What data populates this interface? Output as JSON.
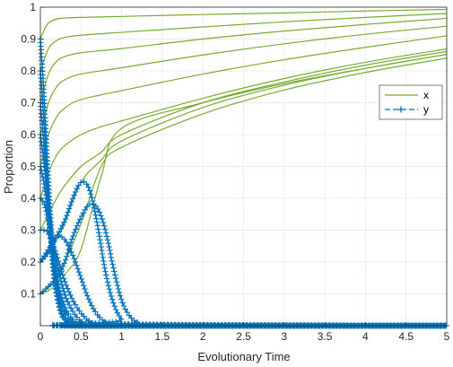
{
  "chart_data": {
    "type": "line",
    "title": "",
    "xlabel": "Evolutionary Time",
    "ylabel": "Proportion",
    "xlim": [
      0,
      5
    ],
    "ylim": [
      0,
      1
    ],
    "xticks": [
      0,
      0.5,
      1,
      1.5,
      2,
      2.5,
      3,
      3.5,
      4,
      4.5,
      5
    ],
    "xtick_labels": [
      "0",
      "0.5",
      "1",
      "1.5",
      "2",
      "2.5",
      "3",
      "3.5",
      "4",
      "4.5",
      "5"
    ],
    "yticks": [
      0.1,
      0.2,
      0.3,
      0.4,
      0.5,
      0.6,
      0.7,
      0.8,
      0.9,
      1
    ],
    "ytick_labels": [
      "0.1",
      "0.2",
      "0.3",
      "0.4",
      "0.5",
      "0.6",
      "0.7",
      "0.8",
      "0.9",
      "1"
    ],
    "grid": true,
    "legend_position": "right",
    "colors": {
      "x": "#77AC30",
      "y": "#0072BD"
    },
    "series": [
      {
        "name": "x",
        "style": "solid",
        "trajectories": [
          {
            "x": [
              0,
              0.05,
              0.1,
              0.2,
              0.3,
              0.5,
              1,
              2,
              3,
              4,
              5
            ],
            "y": [
              0.9,
              0.93,
              0.95,
              0.963,
              0.966,
              0.968,
              0.971,
              0.977,
              0.982,
              0.988,
              0.993
            ]
          },
          {
            "x": [
              0,
              0.1,
              0.2,
              0.3,
              0.5,
              1,
              2,
              3,
              4,
              5
            ],
            "y": [
              0.8,
              0.87,
              0.895,
              0.905,
              0.912,
              0.921,
              0.938,
              0.954,
              0.968,
              0.98
            ]
          },
          {
            "x": [
              0,
              0.1,
              0.2,
              0.3,
              0.5,
              1,
              2,
              3,
              4,
              5
            ],
            "y": [
              0.7,
              0.79,
              0.83,
              0.845,
              0.857,
              0.87,
              0.9,
              0.925,
              0.946,
              0.965
            ]
          },
          {
            "x": [
              0,
              0.1,
              0.2,
              0.3,
              0.5,
              1,
              2,
              3,
              4,
              5
            ],
            "y": [
              0.6,
              0.7,
              0.75,
              0.772,
              0.79,
              0.81,
              0.85,
              0.885,
              0.915,
              0.94
            ]
          },
          {
            "x": [
              0,
              0.1,
              0.2,
              0.3,
              0.5,
              1,
              2,
              3,
              4,
              5
            ],
            "y": [
              0.5,
              0.6,
              0.655,
              0.683,
              0.71,
              0.738,
              0.79,
              0.835,
              0.874,
              0.91
            ]
          },
          {
            "x": [
              0,
              0.1,
              0.2,
              0.3,
              0.5,
              0.75,
              1,
              2,
              3,
              4,
              5
            ],
            "y": [
              0.4,
              0.48,
              0.535,
              0.565,
              0.6,
              0.625,
              0.643,
              0.714,
              0.776,
              0.827,
              0.869
            ]
          },
          {
            "x": [
              0,
              0.1,
              0.2,
              0.3,
              0.5,
              0.75,
              1,
              2,
              3,
              4,
              5
            ],
            "y": [
              0.3,
              0.35,
              0.4,
              0.44,
              0.5,
              0.545,
              0.6,
              0.7,
              0.765,
              0.818,
              0.861
            ]
          },
          {
            "x": [
              0,
              0.1,
              0.2,
              0.3,
              0.5,
              0.75,
              1,
              2,
              3,
              4,
              5
            ],
            "y": [
              0.2,
              0.23,
              0.27,
              0.32,
              0.45,
              0.52,
              0.58,
              0.685,
              0.755,
              0.808,
              0.852
            ]
          },
          {
            "x": [
              0,
              0.1,
              0.2,
              0.3,
              0.5,
              0.75,
              1,
              2,
              3,
              4,
              5
            ],
            "y": [
              0.1,
              0.12,
              0.15,
              0.2,
              0.32,
              0.5,
              0.56,
              0.665,
              0.74,
              0.795,
              0.84
            ]
          },
          {
            "x": [
              0,
              0.1,
              0.2,
              0.3,
              0.5,
              0.75,
              1,
              2,
              3,
              4,
              5
            ],
            "y": [
              0.1,
              0.11,
              0.13,
              0.16,
              0.24,
              0.47,
              0.62,
              0.7,
              0.76,
              0.808,
              0.852
            ]
          }
        ]
      },
      {
        "name": "y",
        "style": "dashed-plus",
        "trajectories": [
          {
            "x": [
              0,
              0.05,
              0.1,
              0.15,
              0.2,
              0.25,
              0.3,
              0.4,
              0.5,
              5
            ],
            "y": [
              0.9,
              0.7,
              0.45,
              0.25,
              0.12,
              0.05,
              0.02,
              0.005,
              0,
              0
            ]
          },
          {
            "x": [
              0,
              0.05,
              0.1,
              0.15,
              0.2,
              0.25,
              0.3,
              0.4,
              0.5,
              5
            ],
            "y": [
              0.8,
              0.62,
              0.4,
              0.22,
              0.1,
              0.045,
              0.02,
              0.005,
              0,
              0
            ]
          },
          {
            "x": [
              0,
              0.05,
              0.1,
              0.15,
              0.2,
              0.25,
              0.3,
              0.4,
              0.5,
              5
            ],
            "y": [
              0.7,
              0.55,
              0.37,
              0.2,
              0.1,
              0.045,
              0.02,
              0.005,
              0,
              0
            ]
          },
          {
            "x": [
              0,
              0.05,
              0.1,
              0.15,
              0.2,
              0.3,
              0.4,
              0.5,
              0.6,
              5
            ],
            "y": [
              0.6,
              0.5,
              0.36,
              0.22,
              0.12,
              0.04,
              0.012,
              0.003,
              0,
              0
            ]
          },
          {
            "x": [
              0,
              0.05,
              0.1,
              0.15,
              0.2,
              0.3,
              0.4,
              0.5,
              0.6,
              5
            ],
            "y": [
              0.5,
              0.44,
              0.35,
              0.25,
              0.15,
              0.06,
              0.02,
              0.006,
              0,
              0
            ]
          },
          {
            "x": [
              0,
              0.05,
              0.1,
              0.15,
              0.2,
              0.3,
              0.4,
              0.5,
              0.6,
              0.7,
              5
            ],
            "y": [
              0.4,
              0.38,
              0.33,
              0.27,
              0.2,
              0.1,
              0.045,
              0.015,
              0.005,
              0,
              0
            ]
          },
          {
            "x": [
              0,
              0.05,
              0.1,
              0.2,
              0.3,
              0.4,
              0.5,
              0.6,
              0.7,
              0.8,
              5
            ],
            "y": [
              0.3,
              0.3,
              0.29,
              0.22,
              0.14,
              0.08,
              0.04,
              0.015,
              0.005,
              0,
              0
            ]
          },
          {
            "x": [
              0,
              0.1,
              0.2,
              0.3,
              0.4,
              0.5,
              0.6,
              0.7,
              0.8,
              0.9,
              5
            ],
            "y": [
              0.2,
              0.24,
              0.28,
              0.27,
              0.22,
              0.15,
              0.08,
              0.035,
              0.012,
              0.004,
              0
            ]
          },
          {
            "x": [
              0,
              0.1,
              0.2,
              0.3,
              0.4,
              0.5,
              0.6,
              0.7,
              0.8,
              0.9,
              1,
              1.1,
              5
            ],
            "y": [
              0.2,
              0.23,
              0.28,
              0.33,
              0.4,
              0.45,
              0.43,
              0.32,
              0.17,
              0.07,
              0.02,
              0.005,
              0
            ]
          },
          {
            "x": [
              0,
              0.2,
              0.3,
              0.4,
              0.5,
              0.6,
              0.7,
              0.8,
              0.9,
              1,
              1.1,
              1.2,
              1.3,
              5
            ],
            "y": [
              0.1,
              0.15,
              0.2,
              0.28,
              0.34,
              0.38,
              0.37,
              0.3,
              0.18,
              0.08,
              0.03,
              0.01,
              0.003,
              0
            ]
          }
        ]
      }
    ]
  }
}
